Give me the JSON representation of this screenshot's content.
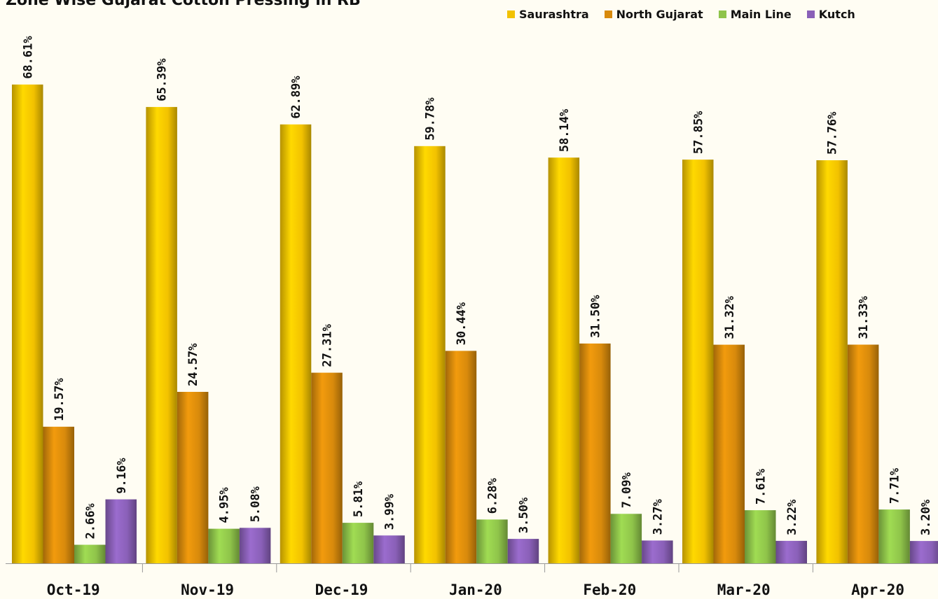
{
  "chart_data": {
    "type": "bar",
    "title": "Zone Wise Gujarat Cotton Pressing in RB",
    "categories": [
      "Oct-19",
      "Nov-19",
      "Dec-19",
      "Jan-20",
      "Feb-20",
      "Mar-20",
      "Apr-20"
    ],
    "series": [
      {
        "name": "Saurashtra",
        "color": "#f2c200",
        "values": [
          68.61,
          65.39,
          62.89,
          59.78,
          58.14,
          57.85,
          57.76
        ],
        "labels": [
          "68.61%",
          "65.39%",
          "62.89%",
          "59.78%",
          "58.14%",
          "57.85%",
          "57.76%"
        ]
      },
      {
        "name": "North Gujarat",
        "color": "#d88a0c",
        "values": [
          19.57,
          24.57,
          27.31,
          30.44,
          31.5,
          31.32,
          31.33
        ],
        "labels": [
          "19.57%",
          "24.57%",
          "27.31%",
          "30.44%",
          "31.50%",
          "31.32%",
          "31.33%"
        ]
      },
      {
        "name": "Main Line",
        "color": "#8fc44a",
        "values": [
          2.66,
          4.95,
          5.81,
          6.28,
          7.09,
          7.61,
          7.71
        ],
        "labels": [
          "2.66%",
          "4.95%",
          "5.81%",
          "6.28%",
          "7.09%",
          "7.61%",
          "7.71%"
        ]
      },
      {
        "name": "Kutch",
        "color": "#8a60b8",
        "values": [
          9.16,
          5.08,
          3.99,
          3.5,
          3.27,
          3.22,
          3.2
        ],
        "labels": [
          "9.16%",
          "5.08%",
          "3.99%",
          "3.50%",
          "3.27%",
          "3.22%",
          "3.20%"
        ]
      }
    ],
    "ylim": [
      0,
      70
    ],
    "legend": "top-right",
    "grid": false,
    "data_labels": "rotated, above bars"
  }
}
